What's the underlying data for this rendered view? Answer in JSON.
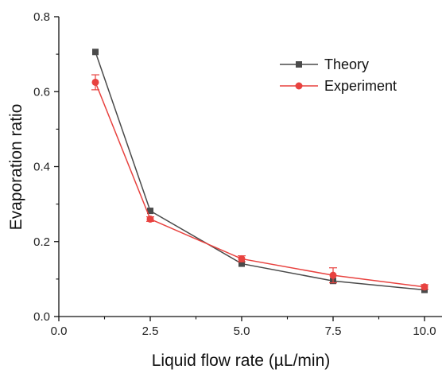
{
  "chart_data": {
    "type": "line",
    "title": "",
    "xlabel": "Liquid flow rate (µL/min)",
    "ylabel": "Evaporation ratio",
    "xlim": [
      0,
      10.5
    ],
    "ylim": [
      0,
      0.8
    ],
    "x_ticks": [
      "0.0",
      "2.5",
      "5.0",
      "7.5",
      "10.0"
    ],
    "y_ticks": [
      "0.0",
      "0.2",
      "0.4",
      "0.6",
      "0.8"
    ],
    "grid": false,
    "legend_position": "top-right",
    "series": [
      {
        "name": "Theory",
        "color": "#4a4a4a",
        "marker": "square",
        "x": [
          1,
          2.5,
          5,
          7.5,
          10
        ],
        "y": [
          0.706,
          0.282,
          0.141,
          0.095,
          0.071
        ]
      },
      {
        "name": "Experiment",
        "color": "#e8423f",
        "marker": "circle",
        "x": [
          1,
          2.5,
          5,
          7.5,
          10
        ],
        "y": [
          0.625,
          0.26,
          0.154,
          0.11,
          0.079
        ],
        "error": [
          0.02,
          0.006,
          0.008,
          0.02,
          0.006
        ]
      }
    ]
  }
}
